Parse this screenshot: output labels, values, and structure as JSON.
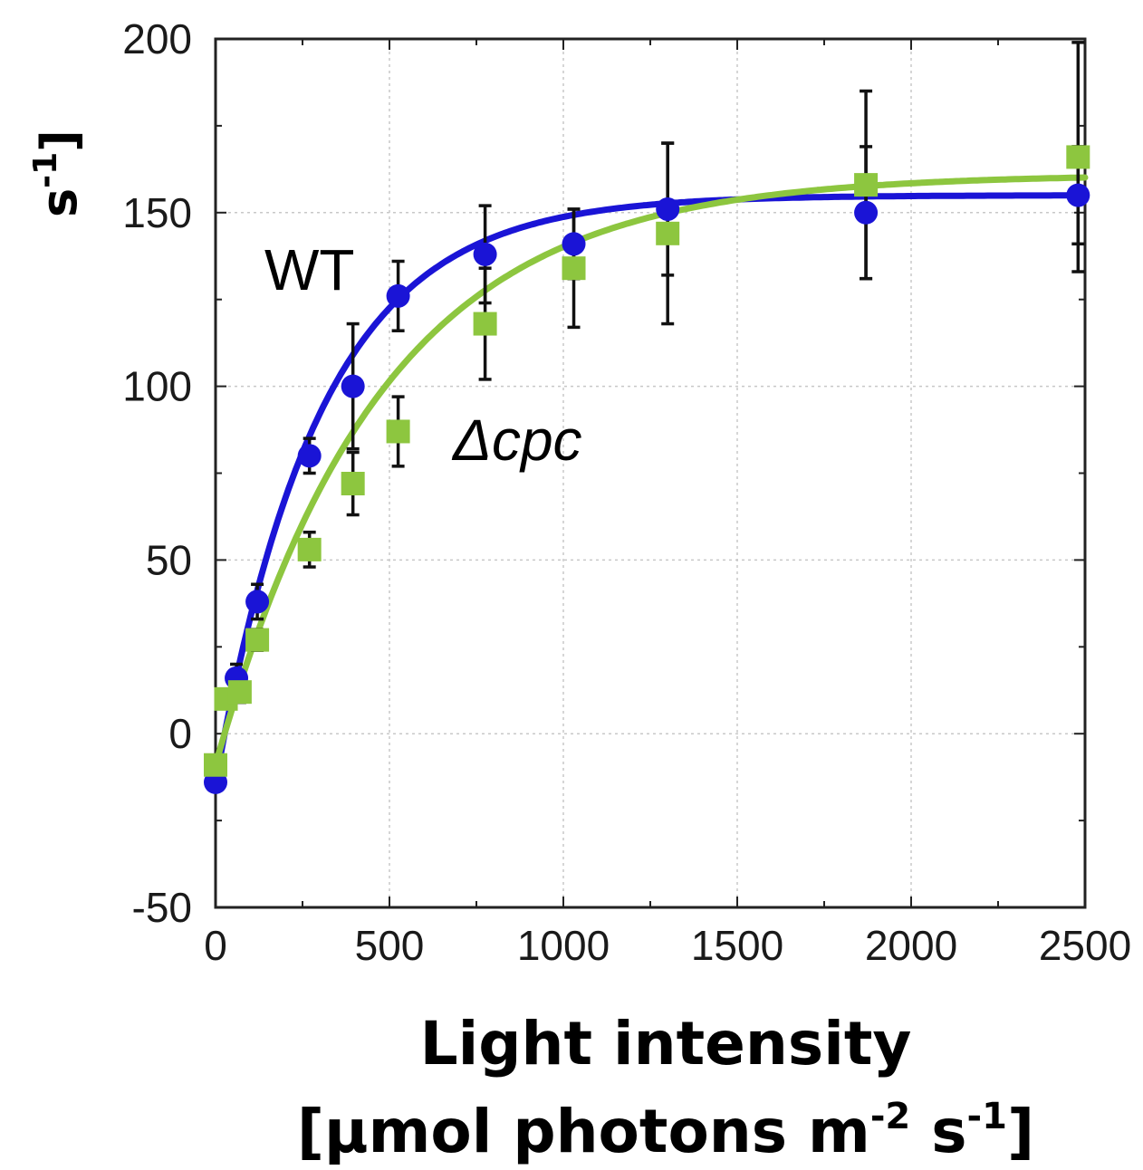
{
  "chart_data": {
    "type": "line",
    "xlim": [
      0,
      2500
    ],
    "ylim": [
      -50,
      200
    ],
    "x_ticks": [
      "0",
      "500",
      "1000",
      "1500",
      "2000",
      "2500"
    ],
    "y_ticks": [
      "-50",
      "0",
      "50",
      "100",
      "150",
      "200"
    ],
    "grid": true,
    "xlabel_line1": "Light intensity",
    "xlabel_line2_prefix": "[µmol photons m",
    "xlabel_exp1": "-2",
    "xlabel_mid": " s",
    "xlabel_exp2": "-1",
    "xlabel_suffix": "]",
    "ylabel_main": "s",
    "ylabel_exp": "-1",
    "ylabel_bracket": "]",
    "annotations": {
      "wt": "WT",
      "mutant": "Δcpc"
    },
    "series": [
      {
        "name": "WT",
        "color": "#1a14d6",
        "marker": "circle",
        "points": [
          {
            "x": 0,
            "y": -14,
            "err": 2
          },
          {
            "x": 60,
            "y": 16,
            "err": 4
          },
          {
            "x": 120,
            "y": 38,
            "err": 5
          },
          {
            "x": 270,
            "y": 80,
            "err": 5
          },
          {
            "x": 395,
            "y": 100,
            "err": 18
          },
          {
            "x": 525,
            "y": 126,
            "err": 10
          },
          {
            "x": 775,
            "y": 138,
            "err": 14
          },
          {
            "x": 1030,
            "y": 141,
            "err": 10
          },
          {
            "x": 1300,
            "y": 151,
            "err": 19
          },
          {
            "x": 1870,
            "y": 150,
            "err": 19
          },
          {
            "x": 2480,
            "y": 155,
            "err": 14
          }
        ]
      },
      {
        "name": "Δcpc",
        "color": "#8dc63f",
        "marker": "square",
        "points": [
          {
            "x": 0,
            "y": -9,
            "err": 1
          },
          {
            "x": 30,
            "y": 10,
            "err": 2
          },
          {
            "x": 70,
            "y": 12,
            "err": 3
          },
          {
            "x": 120,
            "y": 27,
            "err": 3
          },
          {
            "x": 270,
            "y": 53,
            "err": 5
          },
          {
            "x": 395,
            "y": 72,
            "err": 9
          },
          {
            "x": 525,
            "y": 87,
            "err": 10
          },
          {
            "x": 775,
            "y": 118,
            "err": 16
          },
          {
            "x": 1030,
            "y": 134,
            "err": 17
          },
          {
            "x": 1300,
            "y": 144,
            "err": 26
          },
          {
            "x": 1870,
            "y": 158,
            "err": 27
          },
          {
            "x": 2480,
            "y": 166,
            "err": 33
          }
        ]
      }
    ],
    "fit_curves": [
      {
        "series": "WT",
        "y0": -14,
        "ymax": 155,
        "k": 0.0033
      },
      {
        "series": "Δcpc",
        "y0": -9,
        "ymax": 161,
        "k": 0.0021
      }
    ]
  }
}
